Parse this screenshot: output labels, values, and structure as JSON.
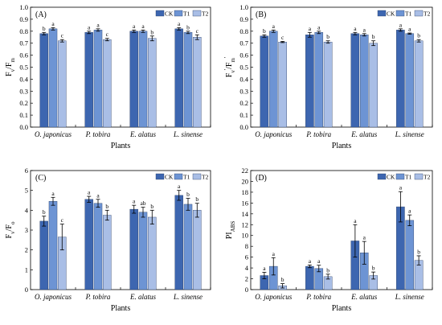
{
  "figure": {
    "legend": [
      {
        "name": "CK",
        "color": "#3d66b0"
      },
      {
        "name": "T1",
        "color": "#6d94d4"
      },
      {
        "name": "T2",
        "color": "#a9bee6"
      }
    ]
  },
  "chart_data": [
    {
      "type": "bar",
      "panel": "(A)",
      "title": "",
      "xlabel": "Plants",
      "ylabel": "Fv/Fm",
      "ylim": [
        0,
        1.0
      ],
      "yticks": [
        "0.0",
        "0.1",
        "0.2",
        "0.3",
        "0.4",
        "0.5",
        "0.6",
        "0.7",
        "0.8",
        "0.9",
        "1.0"
      ],
      "categories": [
        "O. japonicus",
        "P. tobira",
        "E. alatus",
        "L. sinense"
      ],
      "legend_position": "top-right",
      "series": [
        {
          "name": "CK",
          "values": [
            0.78,
            0.79,
            0.8,
            0.82
          ],
          "errors": [
            0.01,
            0.01,
            0.01,
            0.01
          ],
          "letters": [
            "b",
            "a",
            "a",
            "a"
          ]
        },
        {
          "name": "T1",
          "values": [
            0.82,
            0.81,
            0.8,
            0.79
          ],
          "errors": [
            0.01,
            0.01,
            0.01,
            0.01
          ],
          "letters": [
            "a",
            "a",
            "a",
            "b"
          ]
        },
        {
          "name": "T2",
          "values": [
            0.72,
            0.73,
            0.74,
            0.75
          ],
          "errors": [
            0.01,
            0.01,
            0.02,
            0.02
          ],
          "letters": [
            "c",
            "c",
            "b",
            "c"
          ]
        }
      ]
    },
    {
      "type": "bar",
      "panel": "(B)",
      "title": "",
      "xlabel": "Plants",
      "ylabel": "Fv'/Fm'",
      "ylim": [
        0,
        1.0
      ],
      "yticks": [
        "0.0",
        "0.1",
        "0.2",
        "0.3",
        "0.4",
        "0.5",
        "0.6",
        "0.7",
        "0.8",
        "0.9",
        "1.0"
      ],
      "categories": [
        "O. japonicus",
        "P. tobira",
        "E. alatus",
        "L. sinense"
      ],
      "legend_position": "top-right",
      "series": [
        {
          "name": "CK",
          "values": [
            0.76,
            0.77,
            0.78,
            0.81
          ],
          "errors": [
            0.01,
            0.02,
            0.01,
            0.01
          ],
          "letters": [
            "b",
            "a",
            "a",
            "a"
          ]
        },
        {
          "name": "T1",
          "values": [
            0.8,
            0.79,
            0.77,
            0.78
          ],
          "errors": [
            0.01,
            0.01,
            0.01,
            0.005
          ],
          "letters": [
            "a",
            "a",
            "a",
            "a"
          ]
        },
        {
          "name": "T2",
          "values": [
            0.71,
            0.71,
            0.7,
            0.72
          ],
          "errors": [
            0.005,
            0.01,
            0.02,
            0.01
          ],
          "letters": [
            "c",
            "b",
            "b",
            "b"
          ]
        }
      ]
    },
    {
      "type": "bar",
      "panel": "(C)",
      "title": "",
      "xlabel": "Plants",
      "ylabel": "Fv/Fo",
      "ylim": [
        0,
        6
      ],
      "yticks": [
        "0",
        "1",
        "2",
        "3",
        "4",
        "5",
        "6"
      ],
      "categories": [
        "O. japonicus",
        "P. tobira",
        "E. alatus",
        "L. sinense"
      ],
      "legend_position": "top-right",
      "series": [
        {
          "name": "CK",
          "values": [
            3.45,
            4.55,
            4.05,
            4.75
          ],
          "errors": [
            0.25,
            0.15,
            0.2,
            0.25
          ],
          "letters": [
            "b",
            "a",
            "a",
            "a"
          ]
        },
        {
          "name": "T1",
          "values": [
            4.45,
            4.35,
            3.9,
            4.3
          ],
          "errors": [
            0.2,
            0.2,
            0.25,
            0.3
          ],
          "letters": [
            "a",
            "a",
            "ab",
            "b"
          ]
        },
        {
          "name": "T2",
          "values": [
            2.65,
            3.75,
            3.65,
            4.0
          ],
          "errors": [
            0.65,
            0.25,
            0.35,
            0.35
          ],
          "letters": [
            "c",
            "b",
            "b",
            "b"
          ]
        }
      ]
    },
    {
      "type": "bar",
      "panel": "(D)",
      "title": "",
      "xlabel": "Plants",
      "ylabel": "PIABS",
      "ylim": [
        0,
        22
      ],
      "yticks": [
        "0",
        "2",
        "4",
        "6",
        "8",
        "10",
        "12",
        "14",
        "16",
        "18",
        "20",
        "22"
      ],
      "categories": [
        "O. japonicus",
        "P. tobira",
        "E. alatus",
        "L. sinense"
      ],
      "legend_position": "top-right",
      "series": [
        {
          "name": "CK",
          "values": [
            2.6,
            4.3,
            9.0,
            15.3
          ],
          "errors": [
            0.6,
            0.25,
            3.0,
            2.8
          ],
          "letters": [
            "a",
            "a",
            "a",
            "a"
          ]
        },
        {
          "name": "T1",
          "values": [
            4.3,
            3.9,
            6.8,
            12.8
          ],
          "errors": [
            1.6,
            0.6,
            2.1,
            1.0
          ],
          "letters": [
            "a",
            "a",
            "a",
            "a"
          ]
        },
        {
          "name": "T2",
          "values": [
            0.7,
            2.4,
            2.6,
            5.4
          ],
          "errors": [
            0.4,
            0.45,
            0.65,
            0.85
          ],
          "letters": [
            "b",
            "b",
            "b",
            "b"
          ]
        }
      ]
    }
  ]
}
